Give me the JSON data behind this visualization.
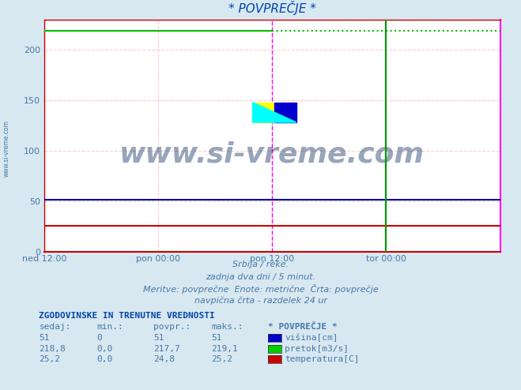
{
  "title": "* POVPREČJE *",
  "bg_color": "#d8e8f0",
  "plot_bg_color": "#ffffff",
  "ylim": [
    0,
    230
  ],
  "yticks": [
    0,
    50,
    100,
    150,
    200
  ],
  "xlim": [
    0,
    576
  ],
  "xtick_positions": [
    0,
    144,
    288,
    432,
    576
  ],
  "xtick_labels": [
    "ned 12:00",
    "pon 00:00",
    "pon 12:00",
    "tor 00:00",
    ""
  ],
  "grid_color": "#ffcccc",
  "grid_style": "--",
  "line_blue_y": 51,
  "line_blue_color": "#000099",
  "line_green_y": 219.1,
  "line_green_color": "#00bb00",
  "line_red_y": 25.2,
  "line_red_color": "#cc0000",
  "vline1_x": 288,
  "vline1_color": "#ff00ff",
  "vline1_style": "--",
  "vline2_x": 432,
  "vline2_color": "#009900",
  "vline2_style": "-",
  "text_subtitle1": "Srbija / reke.",
  "text_subtitle2": "zadnja dva dni / 5 minut.",
  "text_subtitle3": "Meritve: povprečne  Enote: metrične  Črta: povprečje",
  "text_subtitle4": "navpična črta - razdelek 24 ur",
  "text_color": "#4477aa",
  "title_color": "#0044aa",
  "table_header": "ZGODOVINSKE IN TRENUTNE VREDNOSTI",
  "table_cols": [
    "sedaj:",
    "min.:",
    "povpr.:",
    "maks.:",
    "* POVPREČJE *"
  ],
  "table_rows": [
    [
      "51",
      "0",
      "51",
      "51",
      "višina[cm]"
    ],
    [
      "218,8",
      "0,0",
      "217,7",
      "219,1",
      "pretok[m3/s]"
    ],
    [
      "25,2",
      "0,0",
      "24,8",
      "25,2",
      "temperatura[C]"
    ]
  ],
  "legend_colors": [
    "#0000cc",
    "#00cc00",
    "#cc0000"
  ],
  "watermark_text": "www.si-vreme.com",
  "watermark_color": "#1a3a6a",
  "side_text": "www.si-vreme.com",
  "spine_bottom_color": "#cc0000",
  "spine_right_color": "#ff00ff",
  "spine_top_color": "#cc0000",
  "spine_left_color": "#cc0000"
}
